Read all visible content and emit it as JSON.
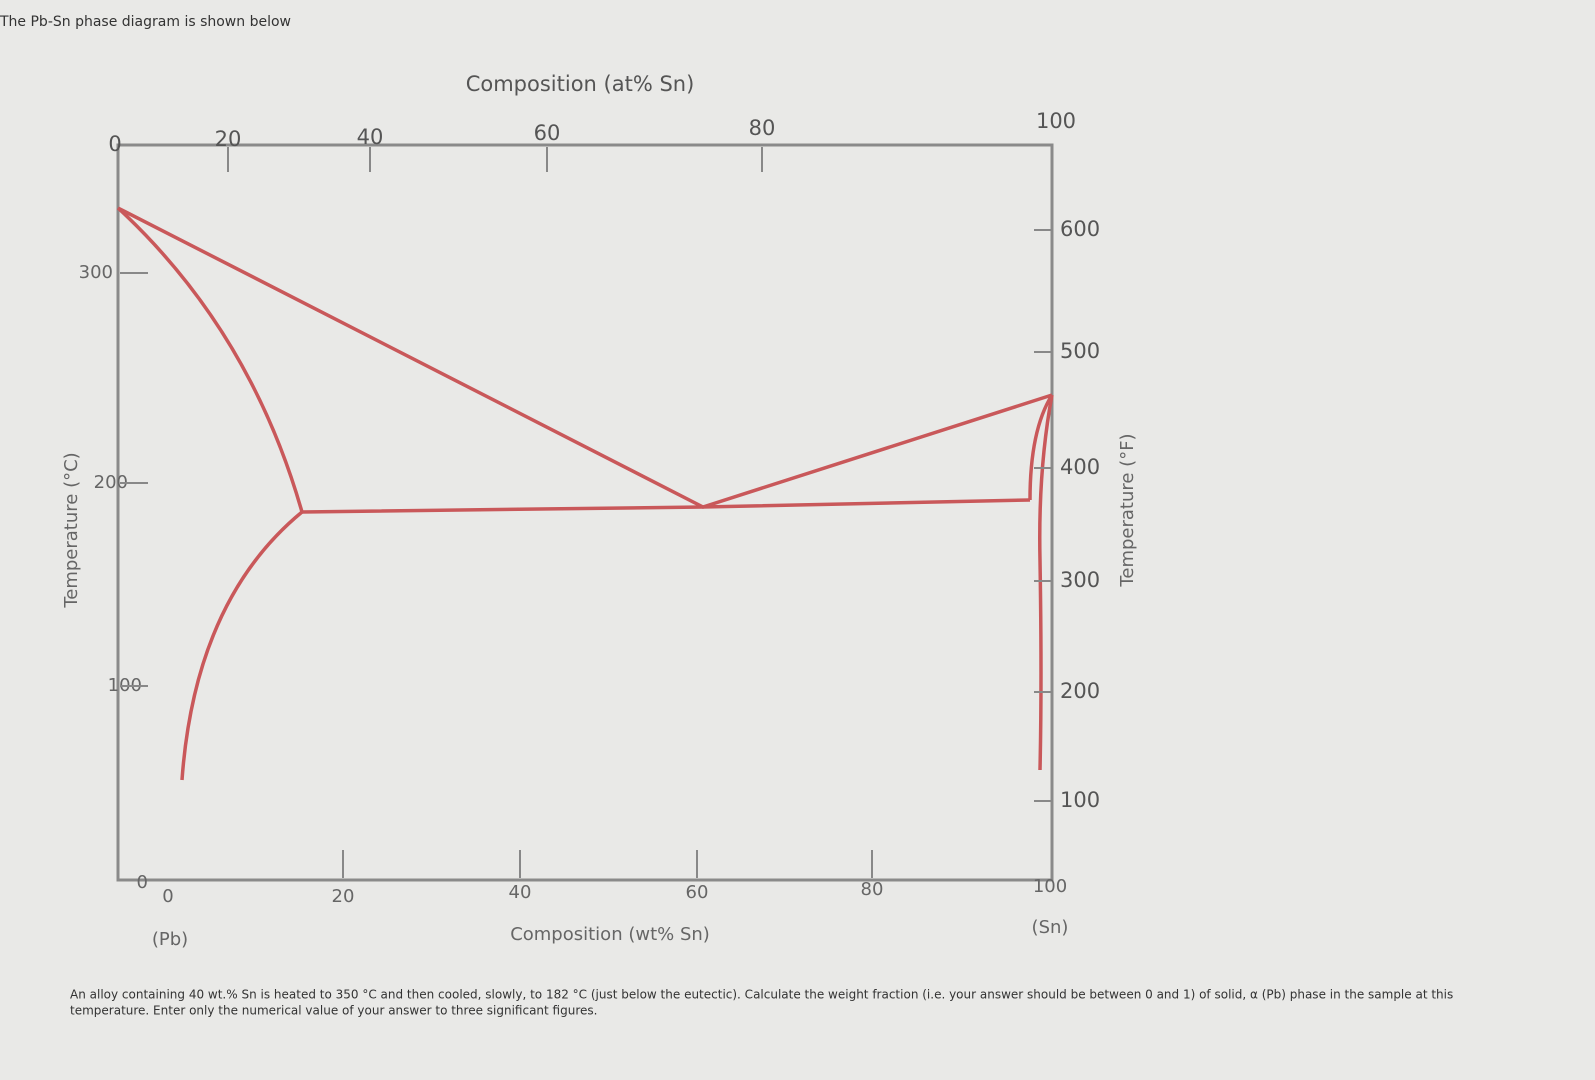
{
  "header": {
    "text": "The Pb-Sn phase diagram is shown below"
  },
  "diagram": {
    "top_axis": {
      "title": "Composition (at% Sn)",
      "ticks": [
        "0",
        "20",
        "40",
        "60",
        "80",
        "100"
      ]
    },
    "left_axis": {
      "title": "Temperature (°C)",
      "ticks": [
        "300",
        "200",
        "100",
        "0"
      ]
    },
    "right_axis": {
      "title": "Temperature (°F)",
      "ticks": [
        "600",
        "500",
        "400",
        "300",
        "200",
        "100"
      ]
    },
    "bottom_axis": {
      "title": "Composition (wt% Sn)",
      "ticks": [
        "0",
        "20",
        "40",
        "60",
        "80",
        "100"
      ],
      "left_end": "(Pb)",
      "right_end": "(Sn)"
    }
  },
  "question": {
    "lines": [
      "An alloy containing 40 wt.% Sn is heated to 350 °C and then cooled, slowly, to 182 °C (just below the eutectic). Calculate the weight fraction (i.e. your answer should be between 0 and 1) of solid, α (Pb) phase in the sample at this",
      "temperature. Enter only the numerical value of your answer to three significant figures."
    ]
  }
}
